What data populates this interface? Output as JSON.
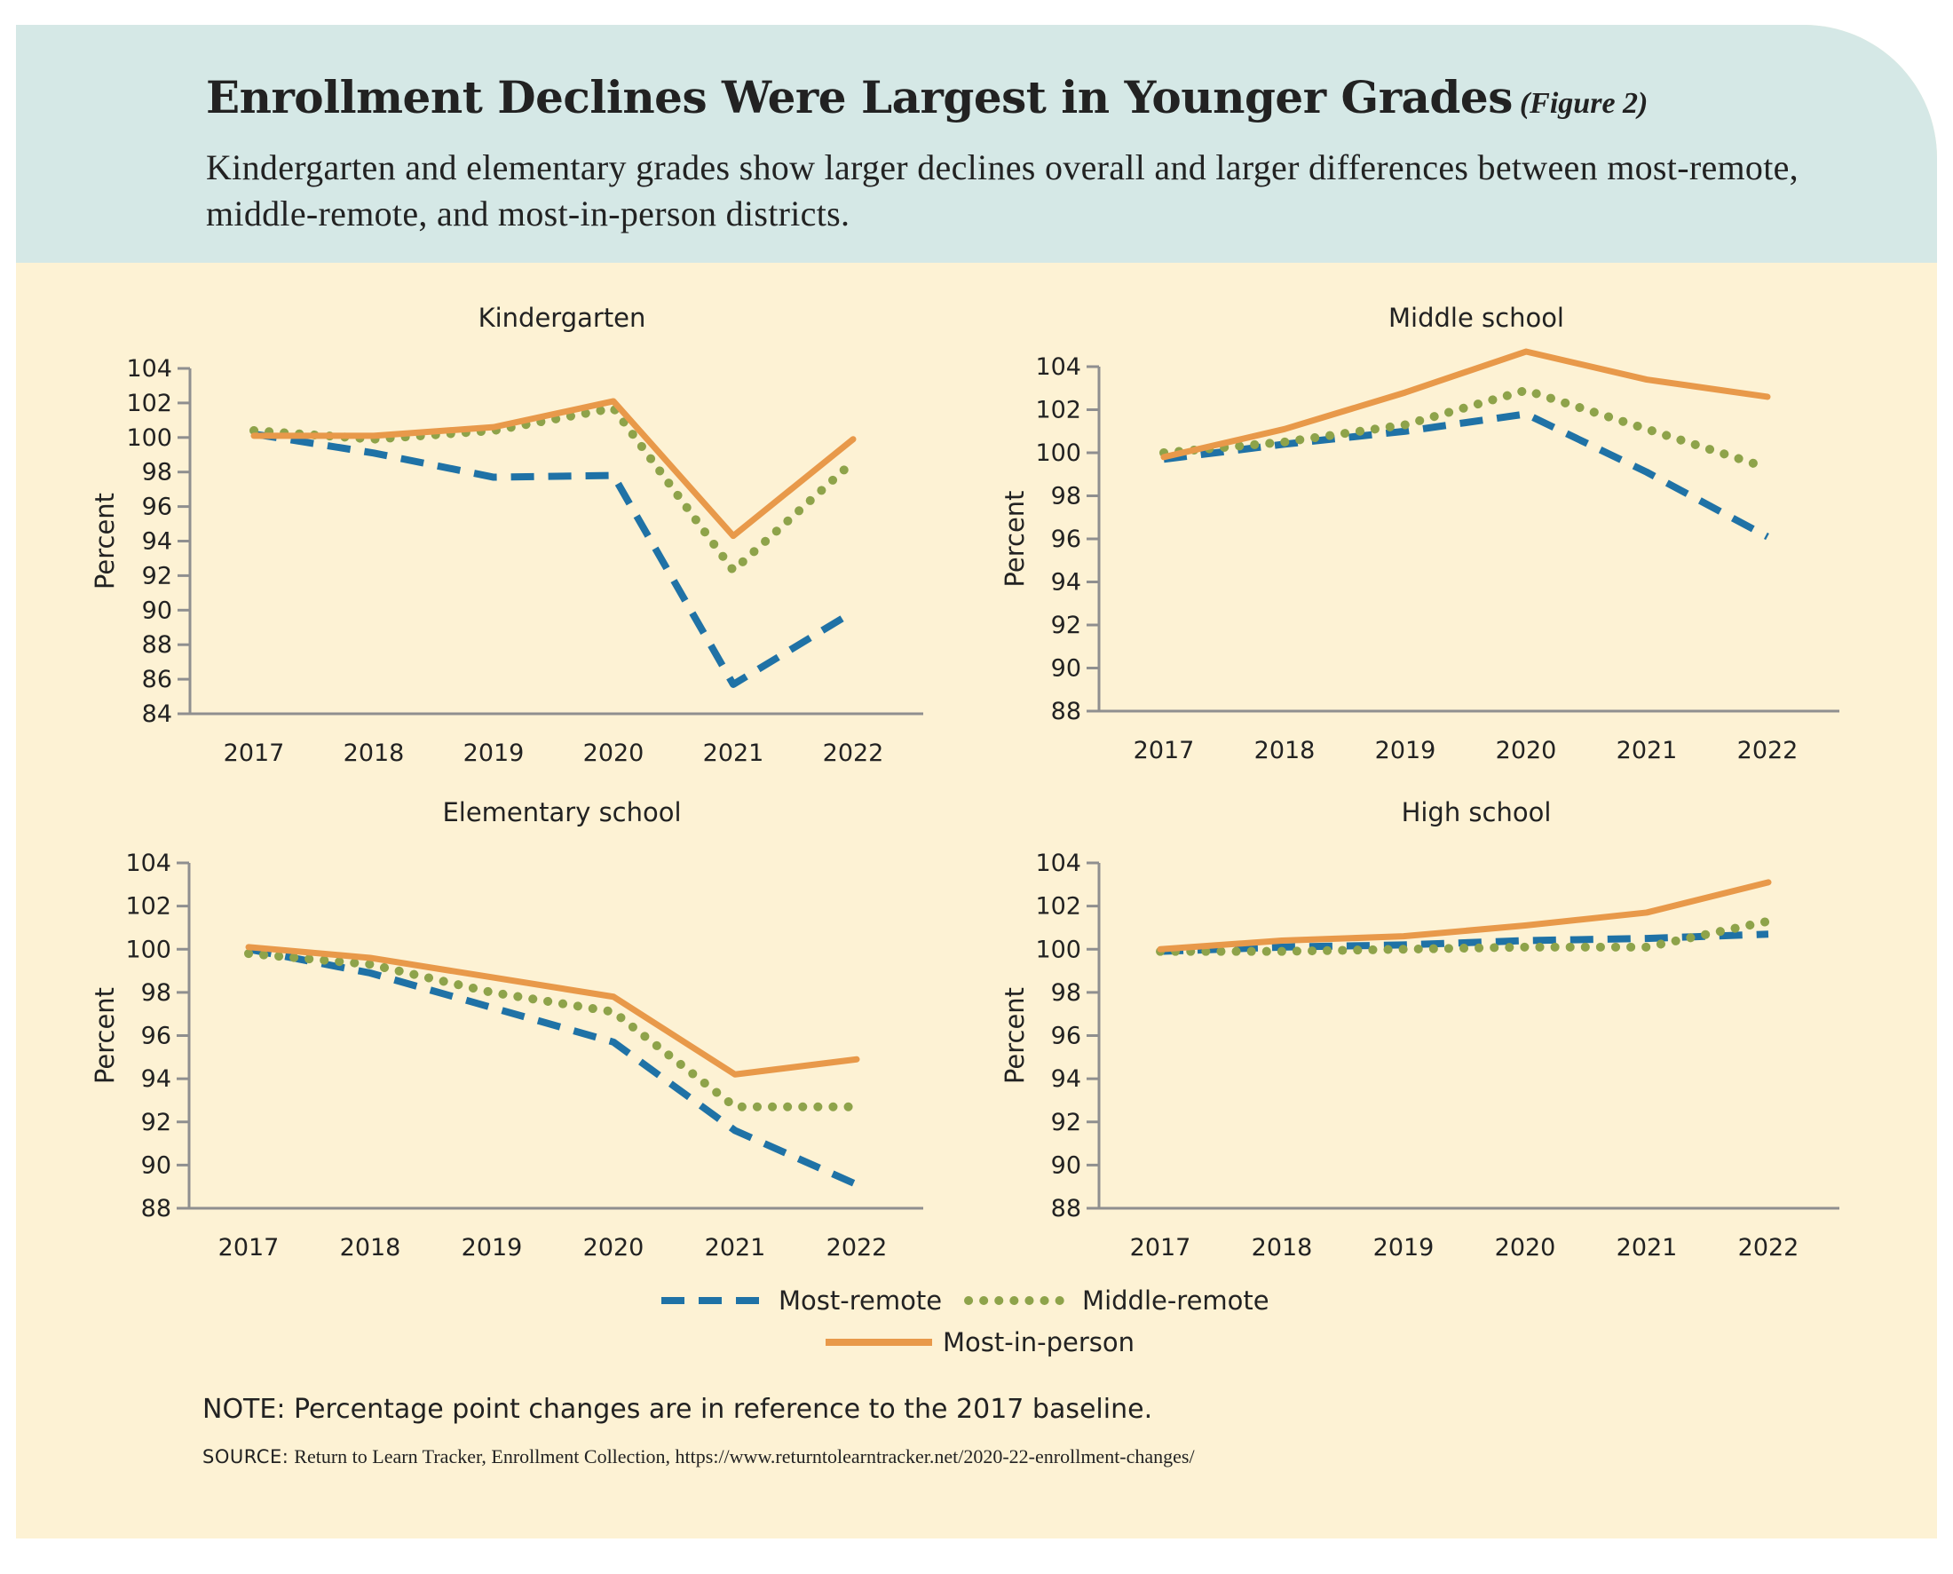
{
  "title": "Enrollment Declines Were Largest in Younger Grades",
  "figure_label": "(Figure 2)",
  "subtitle": "Kindergarten and elementary grades show larger declines overall and larger differences between most-remote, middle-remote, and most-in-person districts.",
  "note": "NOTE: Percentage point changes are in reference to the 2017 baseline.",
  "source_label": "SOURCE:",
  "source_text": "Return to Learn Tracker, Enrollment Collection, https://www.returntolearntracker.net/2020-22-enrollment-changes/",
  "colors": {
    "background": "#fdf2d4",
    "header": "#d5e8e6",
    "most_remote": "#1f72a6",
    "middle_remote": "#8ea34a",
    "most_in_person": "#e8994a",
    "axis": "#8f8f8f"
  },
  "legend": {
    "most_remote": "Most-remote",
    "middle_remote": "Middle-remote",
    "most_in_person": "Most-in-person"
  },
  "chart_data": [
    {
      "type": "line",
      "title": "Kindergarten",
      "xlabel": "",
      "ylabel": "Percent",
      "x": [
        "2017",
        "2018",
        "2019",
        "2020",
        "2021",
        "2022"
      ],
      "yticks": [
        84,
        86,
        88,
        90,
        92,
        94,
        96,
        98,
        100,
        102,
        104
      ],
      "ylim": [
        84,
        104
      ],
      "grid": false,
      "series": [
        {
          "name": "Most-remote",
          "style": "dashed",
          "values": [
            100.2,
            99.1,
            97.7,
            97.8,
            85.7,
            89.9
          ]
        },
        {
          "name": "Middle-remote",
          "style": "dotted",
          "values": [
            100.4,
            99.9,
            100.4,
            101.7,
            92.3,
            98.6
          ]
        },
        {
          "name": "Most-in-person",
          "style": "solid",
          "values": [
            100.1,
            100.1,
            100.6,
            102.1,
            94.3,
            99.9
          ]
        }
      ]
    },
    {
      "type": "line",
      "title": "Middle school",
      "xlabel": "",
      "ylabel": "Percent",
      "x": [
        "2017",
        "2018",
        "2019",
        "2020",
        "2021",
        "2022"
      ],
      "yticks": [
        88,
        90,
        92,
        94,
        96,
        98,
        100,
        102,
        104
      ],
      "ylim": [
        88,
        104
      ],
      "grid": false,
      "series": [
        {
          "name": "Most-remote",
          "style": "dashed",
          "values": [
            99.7,
            100.4,
            101.0,
            101.8,
            99.1,
            96.1
          ]
        },
        {
          "name": "Middle-remote",
          "style": "dotted",
          "values": [
            100.0,
            100.5,
            101.3,
            102.9,
            101.1,
            99.3
          ]
        },
        {
          "name": "Most-in-person",
          "style": "solid",
          "values": [
            99.8,
            101.1,
            102.8,
            104.7,
            103.4,
            102.6
          ]
        }
      ]
    },
    {
      "type": "line",
      "title": "Elementary school",
      "xlabel": "",
      "ylabel": "Percent",
      "x": [
        "2017",
        "2018",
        "2019",
        "2020",
        "2021",
        "2022"
      ],
      "yticks": [
        88,
        90,
        92,
        94,
        96,
        98,
        100,
        102,
        104
      ],
      "ylim": [
        88,
        104
      ],
      "grid": false,
      "series": [
        {
          "name": "Most-remote",
          "style": "dashed",
          "values": [
            100.0,
            98.9,
            97.3,
            95.7,
            91.6,
            89.1
          ]
        },
        {
          "name": "Middle-remote",
          "style": "dotted",
          "values": [
            99.8,
            99.3,
            98.0,
            97.1,
            92.7,
            92.7
          ]
        },
        {
          "name": "Most-in-person",
          "style": "solid",
          "values": [
            100.1,
            99.6,
            98.7,
            97.8,
            94.2,
            94.9
          ]
        }
      ]
    },
    {
      "type": "line",
      "title": "High school",
      "xlabel": "",
      "ylabel": "Percent",
      "x": [
        "2017",
        "2018",
        "2019",
        "2020",
        "2021",
        "2022"
      ],
      "yticks": [
        88,
        90,
        92,
        94,
        96,
        98,
        100,
        102,
        104
      ],
      "ylim": [
        88,
        104
      ],
      "grid": false,
      "series": [
        {
          "name": "Most-remote",
          "style": "dashed",
          "values": [
            99.9,
            100.1,
            100.2,
            100.4,
            100.5,
            100.7
          ]
        },
        {
          "name": "Middle-remote",
          "style": "dotted",
          "values": [
            99.9,
            99.9,
            100.0,
            100.1,
            100.1,
            101.3
          ]
        },
        {
          "name": "Most-in-person",
          "style": "solid",
          "values": [
            100.0,
            100.4,
            100.6,
            101.1,
            101.7,
            103.1
          ]
        }
      ]
    }
  ]
}
